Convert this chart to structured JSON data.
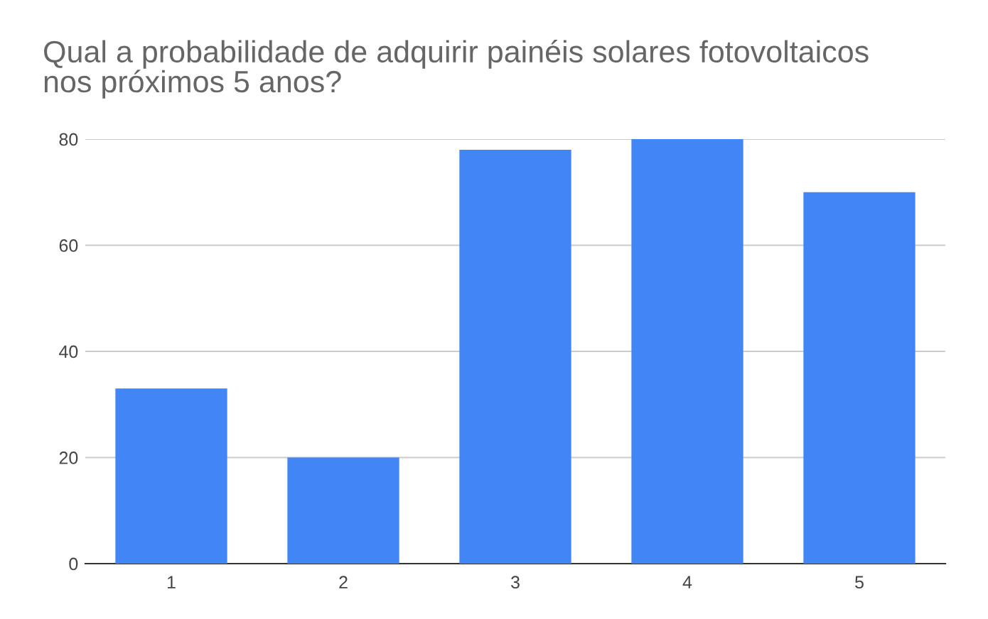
{
  "chart_data": {
    "type": "bar",
    "title": "Qual a probabilidade de adquirir painéis solares fotovoltaicos\nnos próximos 5 anos?",
    "categories": [
      "1",
      "2",
      "3",
      "4",
      "5"
    ],
    "values": [
      33,
      20,
      78,
      80,
      70
    ],
    "color": "#4285f4",
    "ylim": [
      0,
      80
    ],
    "yticks": [
      0,
      20,
      40,
      60,
      80
    ],
    "grid": "y"
  }
}
